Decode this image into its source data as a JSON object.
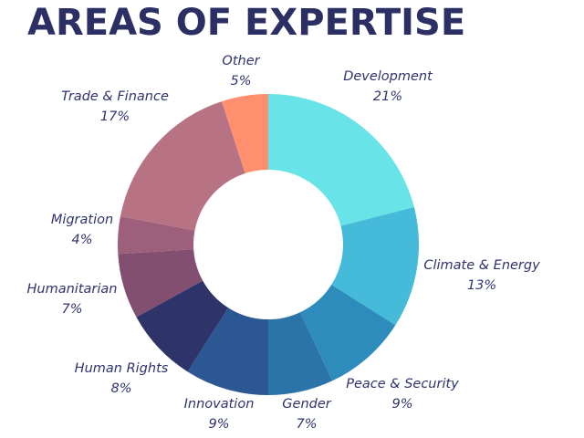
{
  "title": "AREAS OF EXPERTISE",
  "chart_data": {
    "type": "pie",
    "title": "AREAS OF EXPERTISE",
    "donut": true,
    "slices": [
      {
        "label": "Development",
        "value": 21,
        "value_label": "21%",
        "color": "#68e4e8"
      },
      {
        "label": "Climate & Energy",
        "value": 13,
        "value_label": "13%",
        "color": "#45bad9"
      },
      {
        "label": "Peace & Security",
        "value": 9,
        "value_label": "9%",
        "color": "#2e8cbc"
      },
      {
        "label": "Gender",
        "value": 7,
        "value_label": "7%",
        "color": "#2b74a8"
      },
      {
        "label": "Innovation",
        "value": 9,
        "value_label": "9%",
        "color": "#2b5792"
      },
      {
        "label": "Human Rights",
        "value": 8,
        "value_label": "8%",
        "color": "#2e346a"
      },
      {
        "label": "Humanitarian",
        "value": 7,
        "value_label": "7%",
        "color": "#834f71"
      },
      {
        "label": "Migration",
        "value": 4,
        "value_label": "4%",
        "color": "#9d5f7c"
      },
      {
        "label": "Trade & Finance",
        "value": 17,
        "value_label": "17%",
        "color": "#b77383"
      },
      {
        "label": "Other",
        "value": 5,
        "value_label": "5%",
        "color": "#ff8f6f"
      }
    ]
  }
}
